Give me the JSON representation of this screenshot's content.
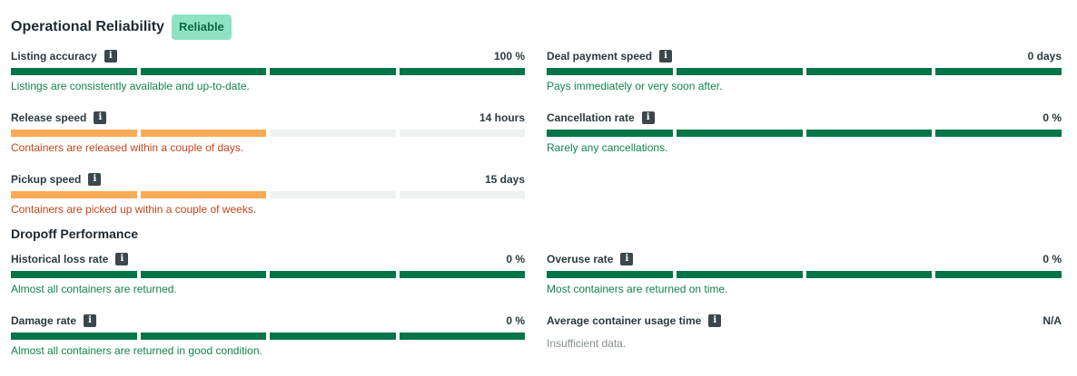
{
  "operational": {
    "title": "Operational Reliability",
    "badge": "Reliable",
    "metrics": [
      {
        "label": "Listing accuracy",
        "value": "100 %",
        "filled_segments": 4,
        "status": "green",
        "description": "Listings are consistently available and up-to-date."
      },
      {
        "label": "Deal payment speed",
        "value": "0 days",
        "filled_segments": 4,
        "status": "green",
        "description": "Pays immediately or very soon after."
      },
      {
        "label": "Release speed",
        "value": "14 hours",
        "filled_segments": 2,
        "status": "orange",
        "description": "Containers are released within a couple of days."
      },
      {
        "label": "Cancellation rate",
        "value": "0 %",
        "filled_segments": 4,
        "status": "green",
        "description": "Rarely any cancellations."
      },
      {
        "label": "Pickup speed",
        "value": "15 days",
        "filled_segments": 2,
        "status": "orange",
        "description": "Containers are picked up within a couple of weeks."
      }
    ]
  },
  "dropoff": {
    "title": "Dropoff Performance",
    "metrics": [
      {
        "label": "Historical loss rate",
        "value": "0 %",
        "filled_segments": 4,
        "status": "green",
        "description": "Almost all containers are returned."
      },
      {
        "label": "Overuse rate",
        "value": "0 %",
        "filled_segments": 4,
        "status": "green",
        "description": "Most containers are returned on time."
      },
      {
        "label": "Damage rate",
        "value": "0 %",
        "filled_segments": 4,
        "status": "green",
        "description": "Almost all containers are returned in good condition."
      },
      {
        "label": "Average container usage time",
        "value": "N/A",
        "filled_segments": 0,
        "status": "grey",
        "description": "Insufficient data."
      }
    ]
  },
  "colors": {
    "green": "#047547",
    "orange": "#fbab56",
    "empty": "#eef3f2",
    "badge_bg": "#8fe3c4",
    "badge_text": "#0c6b45"
  },
  "icons": {
    "info": "info-icon"
  },
  "info_glyph": "i"
}
